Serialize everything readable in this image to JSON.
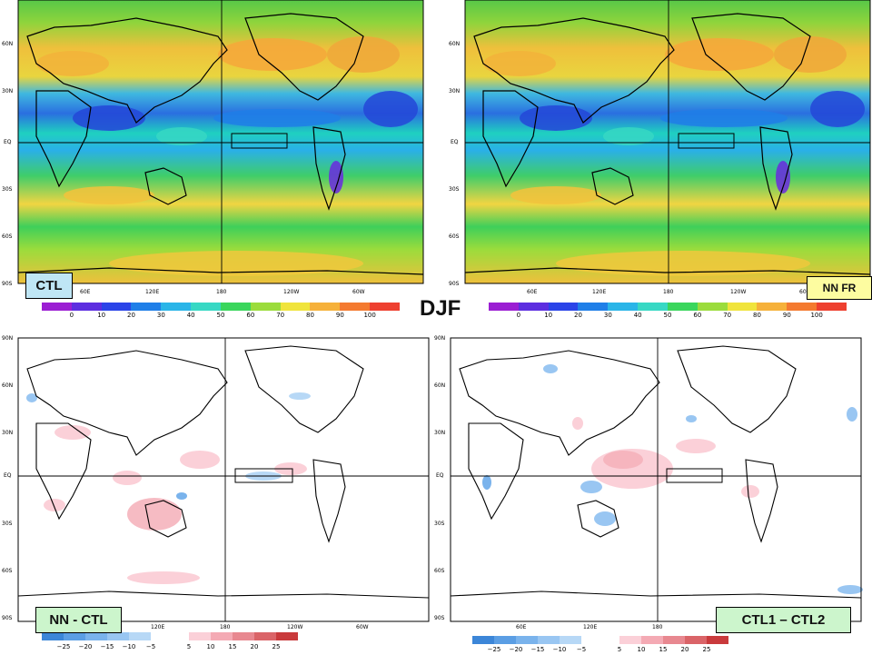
{
  "season_label": "DJF",
  "panels": [
    {
      "id": "ctl",
      "label": "CTL",
      "type": "field"
    },
    {
      "id": "nnfr",
      "label": "NN FR",
      "type": "field"
    },
    {
      "id": "nnctl",
      "label": "NN - CTL",
      "type": "diff"
    },
    {
      "id": "ctl12",
      "label": "CTL1 – CTL2",
      "type": "diff"
    }
  ],
  "axes": {
    "lat_ticks": [
      "90N",
      "60N",
      "30N",
      "EQ",
      "30S",
      "60S",
      "90S"
    ],
    "lon_ticks": [
      "60E",
      "120E",
      "180",
      "120W",
      "60W"
    ]
  },
  "colorbar_field": {
    "ticks": [
      "0",
      "10",
      "20",
      "30",
      "40",
      "50",
      "60",
      "70",
      "80",
      "90",
      "100"
    ],
    "colors": [
      "#9b1ed3",
      "#5d2ee0",
      "#2b44e8",
      "#1f7fe8",
      "#2ab5e8",
      "#37d8c4",
      "#3ad65c",
      "#9bdc3c",
      "#f0e43c",
      "#f6b13a",
      "#f47a30",
      "#ee4030"
    ]
  },
  "colorbar_diff": {
    "ticks": [
      "−25",
      "−20",
      "−15",
      "−10",
      "−5",
      "5",
      "10",
      "15",
      "20",
      "25"
    ],
    "neg_colors": [
      "#3c86d8",
      "#5b9ee4",
      "#7ab3ec",
      "#99c6f2",
      "#b7d8f6"
    ],
    "pos_colors": [
      "#fbd0d8",
      "#f4aab4",
      "#e88890",
      "#da6468",
      "#c93a3c"
    ]
  }
}
